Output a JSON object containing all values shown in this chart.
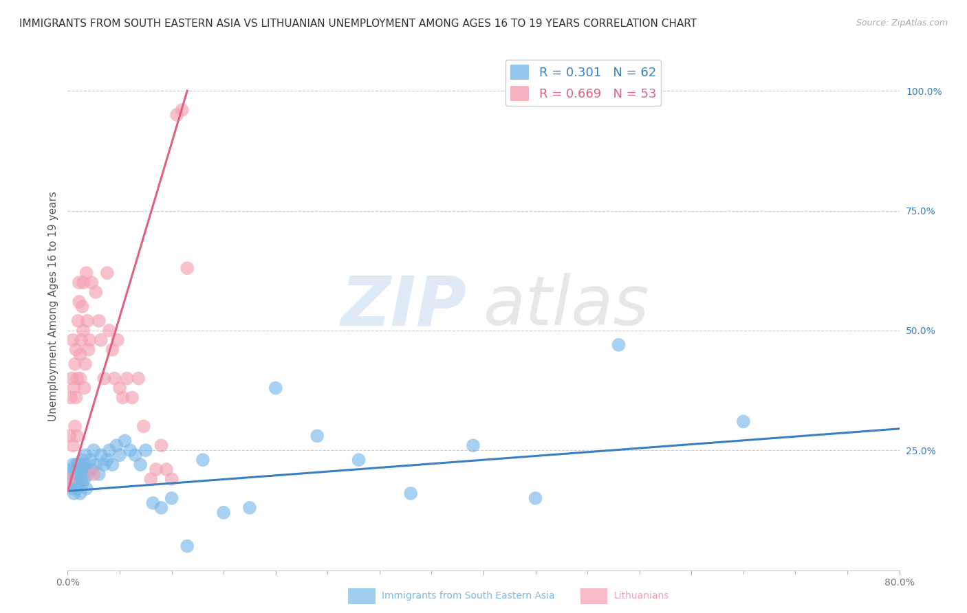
{
  "title": "IMMIGRANTS FROM SOUTH EASTERN ASIA VS LITHUANIAN UNEMPLOYMENT AMONG AGES 16 TO 19 YEARS CORRELATION CHART",
  "source": "Source: ZipAtlas.com",
  "ylabel_left": "Unemployment Among Ages 16 to 19 years",
  "xlim": [
    0.0,
    0.8
  ],
  "ylim": [
    0.0,
    1.1
  ],
  "yticks_right": [
    0.25,
    0.5,
    0.75,
    1.0
  ],
  "ytick_labels_right": [
    "25.0%",
    "50.0%",
    "75.0%",
    "100.0%"
  ],
  "xticks": [
    0.0,
    0.2,
    0.4,
    0.6,
    0.8
  ],
  "xtick_labels": [
    "0.0%",
    "",
    "",
    "",
    "80.0%"
  ],
  "watermark_zip": "ZIP",
  "watermark_atlas": "atlas",
  "legend_r1": "R = 0.301",
  "legend_n1": "N = 62",
  "legend_r2": "R = 0.669",
  "legend_n2": "N = 53",
  "blue_scatter_x": [
    0.001,
    0.002,
    0.003,
    0.004,
    0.005,
    0.005,
    0.006,
    0.006,
    0.007,
    0.007,
    0.008,
    0.008,
    0.009,
    0.009,
    0.01,
    0.01,
    0.011,
    0.012,
    0.012,
    0.013,
    0.013,
    0.014,
    0.014,
    0.015,
    0.016,
    0.016,
    0.017,
    0.018,
    0.019,
    0.02,
    0.022,
    0.023,
    0.025,
    0.027,
    0.03,
    0.032,
    0.035,
    0.038,
    0.04,
    0.043,
    0.047,
    0.05,
    0.055,
    0.06,
    0.065,
    0.07,
    0.075,
    0.082,
    0.09,
    0.1,
    0.115,
    0.13,
    0.15,
    0.175,
    0.2,
    0.24,
    0.28,
    0.33,
    0.39,
    0.45,
    0.53,
    0.65
  ],
  "blue_scatter_y": [
    0.18,
    0.2,
    0.19,
    0.21,
    0.17,
    0.22,
    0.16,
    0.2,
    0.18,
    0.21,
    0.19,
    0.22,
    0.17,
    0.2,
    0.18,
    0.22,
    0.2,
    0.16,
    0.22,
    0.19,
    0.21,
    0.18,
    0.23,
    0.2,
    0.22,
    0.19,
    0.24,
    0.17,
    0.21,
    0.2,
    0.23,
    0.21,
    0.25,
    0.22,
    0.2,
    0.24,
    0.22,
    0.23,
    0.25,
    0.22,
    0.26,
    0.24,
    0.27,
    0.25,
    0.24,
    0.22,
    0.25,
    0.14,
    0.13,
    0.15,
    0.05,
    0.23,
    0.12,
    0.13,
    0.38,
    0.28,
    0.23,
    0.16,
    0.26,
    0.15,
    0.47,
    0.31
  ],
  "pink_scatter_x": [
    0.001,
    0.002,
    0.003,
    0.004,
    0.005,
    0.005,
    0.006,
    0.007,
    0.007,
    0.008,
    0.008,
    0.009,
    0.009,
    0.01,
    0.011,
    0.011,
    0.012,
    0.012,
    0.013,
    0.014,
    0.015,
    0.015,
    0.016,
    0.017,
    0.018,
    0.019,
    0.02,
    0.021,
    0.023,
    0.025,
    0.027,
    0.03,
    0.032,
    0.035,
    0.038,
    0.04,
    0.043,
    0.045,
    0.048,
    0.05,
    0.053,
    0.057,
    0.062,
    0.068,
    0.073,
    0.08,
    0.085,
    0.09,
    0.095,
    0.1,
    0.105,
    0.11,
    0.115
  ],
  "pink_scatter_y": [
    0.19,
    0.28,
    0.36,
    0.4,
    0.26,
    0.48,
    0.38,
    0.43,
    0.3,
    0.46,
    0.36,
    0.28,
    0.4,
    0.52,
    0.6,
    0.56,
    0.45,
    0.4,
    0.48,
    0.55,
    0.6,
    0.5,
    0.38,
    0.43,
    0.62,
    0.52,
    0.46,
    0.48,
    0.6,
    0.2,
    0.58,
    0.52,
    0.48,
    0.4,
    0.62,
    0.5,
    0.46,
    0.4,
    0.48,
    0.38,
    0.36,
    0.4,
    0.36,
    0.4,
    0.3,
    0.19,
    0.21,
    0.26,
    0.21,
    0.19,
    0.95,
    0.96,
    0.63
  ],
  "blue_line_x": [
    0.0,
    0.8
  ],
  "blue_line_y": [
    0.165,
    0.295
  ],
  "pink_line_x": [
    0.0,
    0.115
  ],
  "pink_line_y": [
    0.165,
    1.0
  ],
  "blue_color": "#7ab8e8",
  "pink_color": "#f4a0b0",
  "blue_line_color": "#3a7fc1",
  "pink_line_color": "#e06080",
  "background_color": "#ffffff",
  "grid_color": "#cccccc",
  "title_fontsize": 11,
  "axis_label_fontsize": 11,
  "tick_fontsize": 10,
  "legend_fontsize": 13
}
